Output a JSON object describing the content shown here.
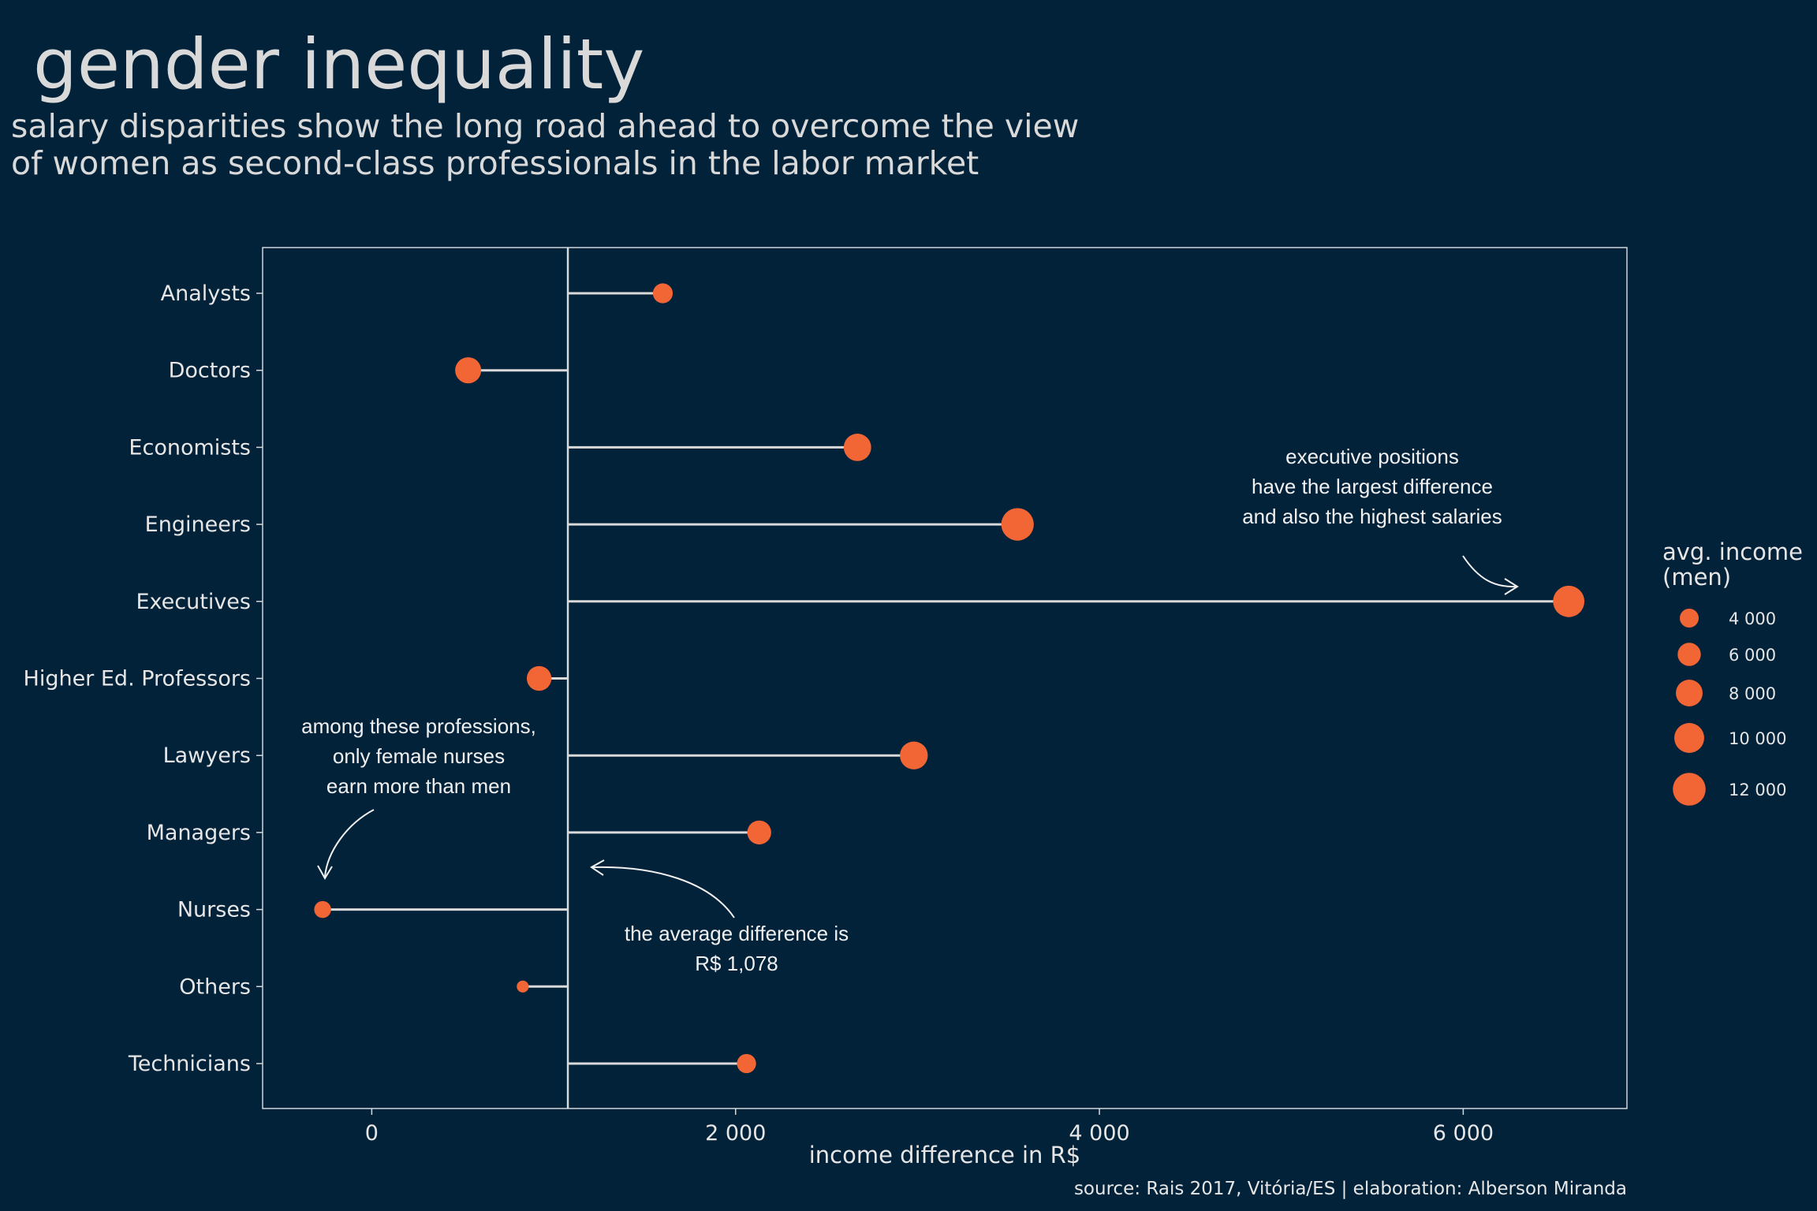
{
  "header": {
    "title": "gender inequality",
    "subtitle_lines": [
      "salary disparities show the long road ahead to overcome the view",
      "of women as second-class professionals in the labor market"
    ]
  },
  "caption": "source: Rais 2017, Vitória/ES | elaboration: Alberson Miranda",
  "annotations": {
    "executives": [
      "executive positions",
      "have the largest difference",
      "and also the highest salaries"
    ],
    "nurses": [
      "among these professions,",
      "only female nurses",
      "earn more than men"
    ],
    "average": [
      "the average difference is",
      "R$ 1,078"
    ]
  },
  "colors": {
    "background": "#02223a",
    "point": "#f26535",
    "line": "#d9d9d9"
  },
  "chart_data": {
    "type": "lollipop",
    "title": "gender inequality",
    "xlabel": "income difference in R$",
    "ylabel": "",
    "xlim": [
      -600,
      6900
    ],
    "x_ticks": [
      0,
      2000,
      4000,
      6000
    ],
    "x_tick_labels": [
      "0",
      "2 000",
      "4 000",
      "6 000"
    ],
    "reference_line": 1078,
    "grid": false,
    "categories": [
      "Analysts",
      "Doctors",
      "Economists",
      "Engineers",
      "Executives",
      "Higher Ed. Professors",
      "Lawyers",
      "Managers",
      "Nurses",
      "Others",
      "Technicians"
    ],
    "values": [
      1600,
      530,
      2670,
      3550,
      6580,
      920,
      2980,
      2130,
      -270,
      830,
      2060
    ],
    "avg_income_men": [
      4400,
      7600,
      8400,
      11800,
      11000,
      6800,
      8700,
      6400,
      3200,
      1600,
      4100
    ],
    "size_legend": {
      "title": "avg. income (men)",
      "values": [
        4000,
        6000,
        8000,
        10000,
        12000
      ],
      "labels": [
        "4 000",
        "6 000",
        "8 000",
        "10 000",
        "12 000"
      ],
      "placement": "right"
    }
  }
}
